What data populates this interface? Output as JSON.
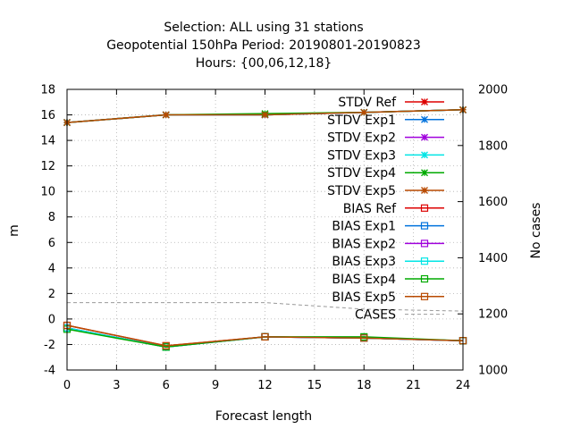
{
  "chart_data": {
    "type": "line",
    "title": [
      "Selection: ALL using    31 stations",
      "Geopotential 150hPa   Period: 20190801-20190823",
      "Hours: {00,06,12,18}"
    ],
    "xlabel": "Forecast length",
    "ylabel": "m",
    "y2label": "No cases",
    "xlim": [
      0,
      24
    ],
    "ylim": [
      -4,
      18
    ],
    "y2lim": [
      1000,
      2000
    ],
    "xticks": [
      0,
      3,
      6,
      9,
      12,
      15,
      18,
      21,
      24
    ],
    "yticks": [
      -4,
      -2,
      0,
      2,
      4,
      6,
      8,
      10,
      12,
      14,
      16,
      18
    ],
    "y2ticks": [
      1000,
      1200,
      1400,
      1600,
      1800,
      2000
    ],
    "grid": true,
    "legend_position": "top-right",
    "x": [
      0,
      6,
      12,
      18,
      24
    ],
    "series": [
      {
        "name": "STDV Ref",
        "axis": "y",
        "marker": "x-star",
        "color": "#dd0000",
        "values": [
          15.4,
          16.0,
          16.0,
          16.2,
          16.4
        ]
      },
      {
        "name": "STDV Exp1",
        "axis": "y",
        "marker": "x-star",
        "color": "#0072dd",
        "values": [
          15.4,
          16.0,
          16.0,
          16.2,
          16.4
        ]
      },
      {
        "name": "STDV Exp2",
        "axis": "y",
        "marker": "x-star",
        "color": "#a000dd",
        "values": [
          15.4,
          16.0,
          16.0,
          16.2,
          16.4
        ]
      },
      {
        "name": "STDV Exp3",
        "axis": "y",
        "marker": "x-star",
        "color": "#00e5e5",
        "values": [
          15.4,
          16.0,
          16.0,
          16.2,
          16.4
        ]
      },
      {
        "name": "STDV Exp4",
        "axis": "y",
        "marker": "x-star",
        "color": "#00aa00",
        "values": [
          15.4,
          16.0,
          16.1,
          16.2,
          16.4
        ]
      },
      {
        "name": "STDV Exp5",
        "axis": "y",
        "marker": "x-star",
        "color": "#b84a00",
        "values": [
          15.4,
          16.0,
          16.0,
          16.2,
          16.4
        ]
      },
      {
        "name": "BIAS Ref",
        "axis": "y",
        "marker": "square",
        "color": "#dd0000",
        "values": [
          -0.5,
          -2.1,
          -1.4,
          -1.5,
          -1.7
        ]
      },
      {
        "name": "BIAS Exp1",
        "axis": "y",
        "marker": "square",
        "color": "#0072dd",
        "values": [
          -0.7,
          -2.2,
          -1.4,
          -1.5,
          -1.7
        ]
      },
      {
        "name": "BIAS Exp2",
        "axis": "y",
        "marker": "square",
        "color": "#a000dd",
        "values": [
          -0.7,
          -2.2,
          -1.4,
          -1.5,
          -1.7
        ]
      },
      {
        "name": "BIAS Exp3",
        "axis": "y",
        "marker": "square",
        "color": "#00e5e5",
        "values": [
          -0.7,
          -2.2,
          -1.4,
          -1.5,
          -1.7
        ]
      },
      {
        "name": "BIAS Exp4",
        "axis": "y",
        "marker": "square",
        "color": "#00aa00",
        "values": [
          -0.8,
          -2.2,
          -1.4,
          -1.4,
          -1.7
        ]
      },
      {
        "name": "BIAS Exp5",
        "axis": "y",
        "marker": "square",
        "color": "#b84a00",
        "values": [
          -0.5,
          -2.1,
          -1.4,
          -1.5,
          -1.7
        ]
      },
      {
        "name": "CASES",
        "axis": "y2",
        "marker": "none",
        "dashed": true,
        "color": "#999999",
        "values": [
          1240,
          1240,
          1240,
          1217,
          1210
        ]
      }
    ]
  }
}
